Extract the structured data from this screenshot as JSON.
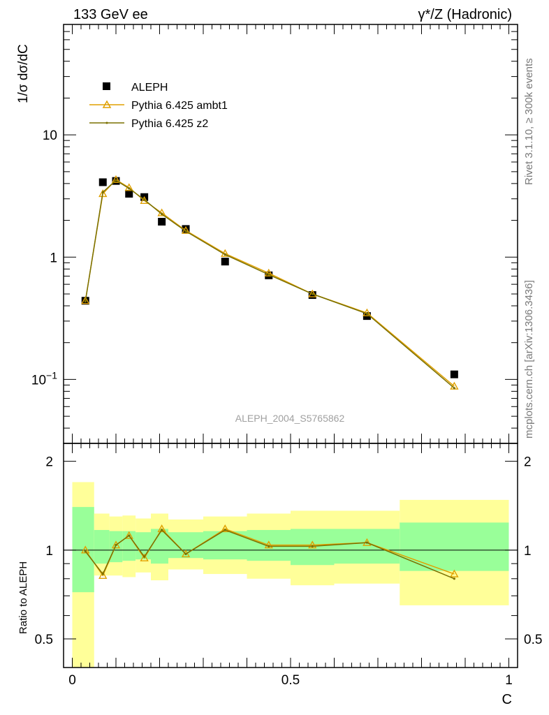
{
  "header": {
    "left": "133 GeV ee",
    "right": "γ*/Z (Hadronic)"
  },
  "side_text": {
    "rivet": "Rivet 3.1.10, ≥ 300k events",
    "mcplots": "mcplots.cern.ch [arXiv:1306.3436]"
  },
  "watermark": "ALEPH_2004_S5765862",
  "legend": [
    {
      "label": "ALEPH",
      "color": "#000000",
      "marker": "square"
    },
    {
      "label": "Pythia 6.425 ambt1",
      "color": "#e0a000",
      "marker": "triangle"
    },
    {
      "label": "Pythia 6.425 z2",
      "color": "#7a7000",
      "marker": "dot"
    }
  ],
  "chart_data": [
    {
      "type": "scatter",
      "panel": "main",
      "ylabel": "1/σ  dσ/dC",
      "xlabel": "",
      "xlim": [
        -0.02,
        1.02
      ],
      "ylim": [
        0.03,
        80
      ],
      "yscale": "log",
      "yticks": [
        {
          "value": 0.1,
          "label": "10^-1"
        },
        {
          "value": 1,
          "label": "1"
        },
        {
          "value": 10,
          "label": "10"
        }
      ],
      "series": [
        {
          "name": "ALEPH",
          "color": "#000000",
          "x": [
            0.03,
            0.07,
            0.1,
            0.13,
            0.165,
            0.205,
            0.26,
            0.35,
            0.45,
            0.55,
            0.675,
            0.875
          ],
          "y": [
            0.44,
            4.1,
            4.2,
            3.3,
            3.1,
            1.95,
            1.7,
            0.92,
            0.71,
            0.49,
            0.33,
            0.11
          ]
        },
        {
          "name": "Pythia 6.425 ambt1",
          "color": "#e0a000",
          "x": [
            0.03,
            0.07,
            0.1,
            0.13,
            0.165,
            0.205,
            0.26,
            0.35,
            0.45,
            0.55,
            0.675,
            0.875
          ],
          "y": [
            0.44,
            3.3,
            4.3,
            3.7,
            2.9,
            2.3,
            1.65,
            1.07,
            0.74,
            0.5,
            0.35,
            0.088
          ]
        },
        {
          "name": "Pythia 6.425 z2",
          "color": "#7a7000",
          "x": [
            0.03,
            0.07,
            0.1,
            0.13,
            0.165,
            0.205,
            0.26,
            0.35,
            0.45,
            0.55,
            0.675,
            0.875
          ],
          "y": [
            0.435,
            3.4,
            4.25,
            3.65,
            2.95,
            2.25,
            1.63,
            1.05,
            0.72,
            0.5,
            0.345,
            0.085
          ]
        }
      ]
    },
    {
      "type": "line",
      "panel": "ratio",
      "ylabel": "Ratio to ALEPH",
      "xlabel": "C",
      "xlim": [
        -0.02,
        1.02
      ],
      "ylim": [
        0.4,
        2.3
      ],
      "yscale": "log",
      "yticks": [
        {
          "value": 0.5,
          "label": "0.5"
        },
        {
          "value": 1,
          "label": "1"
        },
        {
          "value": 2,
          "label": "2"
        }
      ],
      "xticks": [
        {
          "value": 0,
          "label": "0"
        },
        {
          "value": 0.5,
          "label": "0.5"
        },
        {
          "value": 1,
          "label": "1"
        }
      ],
      "bands": {
        "edges": [
          0.0,
          0.05,
          0.085,
          0.115,
          0.145,
          0.18,
          0.22,
          0.3,
          0.4,
          0.5,
          0.6,
          0.75,
          1.0
        ],
        "green_lo": [
          0.72,
          0.9,
          0.91,
          0.92,
          0.93,
          0.9,
          0.94,
          0.93,
          0.92,
          0.89,
          0.9,
          0.85
        ],
        "green_hi": [
          1.4,
          1.17,
          1.16,
          1.16,
          1.15,
          1.18,
          1.15,
          1.16,
          1.17,
          1.18,
          1.18,
          1.24
        ],
        "yellow_lo": [
          0.3,
          0.82,
          0.82,
          0.81,
          0.84,
          0.79,
          0.86,
          0.83,
          0.8,
          0.76,
          0.77,
          0.65
        ],
        "yellow_hi": [
          1.7,
          1.33,
          1.3,
          1.31,
          1.28,
          1.33,
          1.27,
          1.3,
          1.33,
          1.36,
          1.36,
          1.48
        ],
        "green_color": "#99ff99",
        "yellow_color": "#ffff99"
      },
      "series": [
        {
          "name": "Pythia 6.425 ambt1",
          "color": "#e0a000",
          "x": [
            0.03,
            0.07,
            0.1,
            0.13,
            0.165,
            0.205,
            0.26,
            0.35,
            0.45,
            0.55,
            0.675,
            0.875
          ],
          "y": [
            1.0,
            0.82,
            1.04,
            1.12,
            0.94,
            1.18,
            0.97,
            1.18,
            1.04,
            1.04,
            1.06,
            0.83
          ]
        },
        {
          "name": "Pythia 6.425 z2",
          "color": "#7a7000",
          "x": [
            0.03,
            0.07,
            0.1,
            0.13,
            0.165,
            0.205,
            0.26,
            0.35,
            0.45,
            0.55,
            0.675,
            0.875
          ],
          "y": [
            0.99,
            0.83,
            1.04,
            1.12,
            0.95,
            1.17,
            0.97,
            1.17,
            1.03,
            1.03,
            1.06,
            0.8
          ]
        }
      ]
    }
  ]
}
